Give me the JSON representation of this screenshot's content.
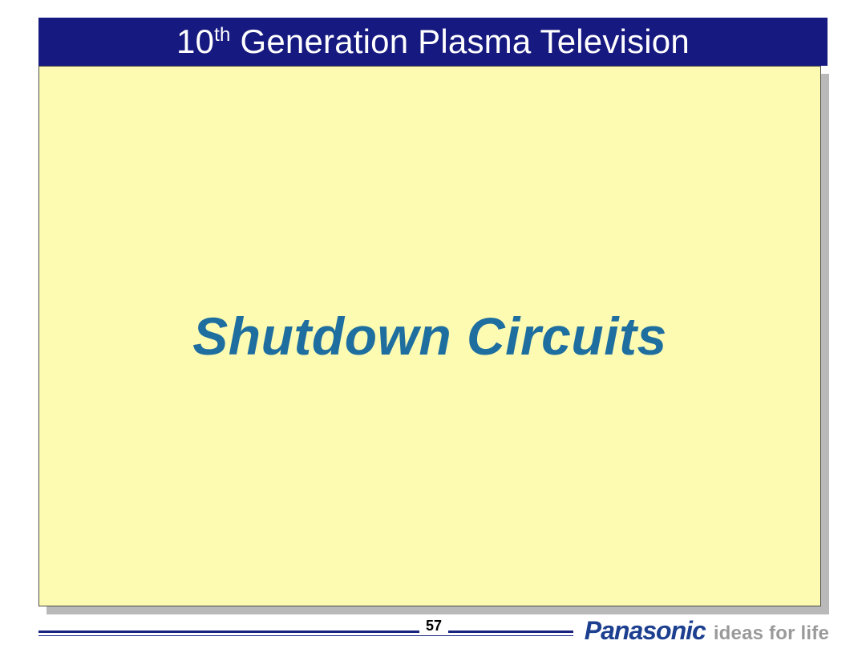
{
  "colors": {
    "title_bar_bg": "#16197f",
    "body_bg": "#fcfbb1",
    "heading_color": "#1f6ea0",
    "footer_rule": "#1a237e",
    "brand_name": "#1c3f8f",
    "brand_tagline": "#9a9a9a",
    "shadow": "#b9b9b9"
  },
  "header": {
    "title_prefix": "10",
    "title_sup": "th",
    "title_suffix": " Generation Plasma Television"
  },
  "main": {
    "heading": "Shutdown Circuits"
  },
  "footer": {
    "page_number": "57",
    "brand_name": "Panasonic",
    "brand_tagline": "ideas for life"
  }
}
